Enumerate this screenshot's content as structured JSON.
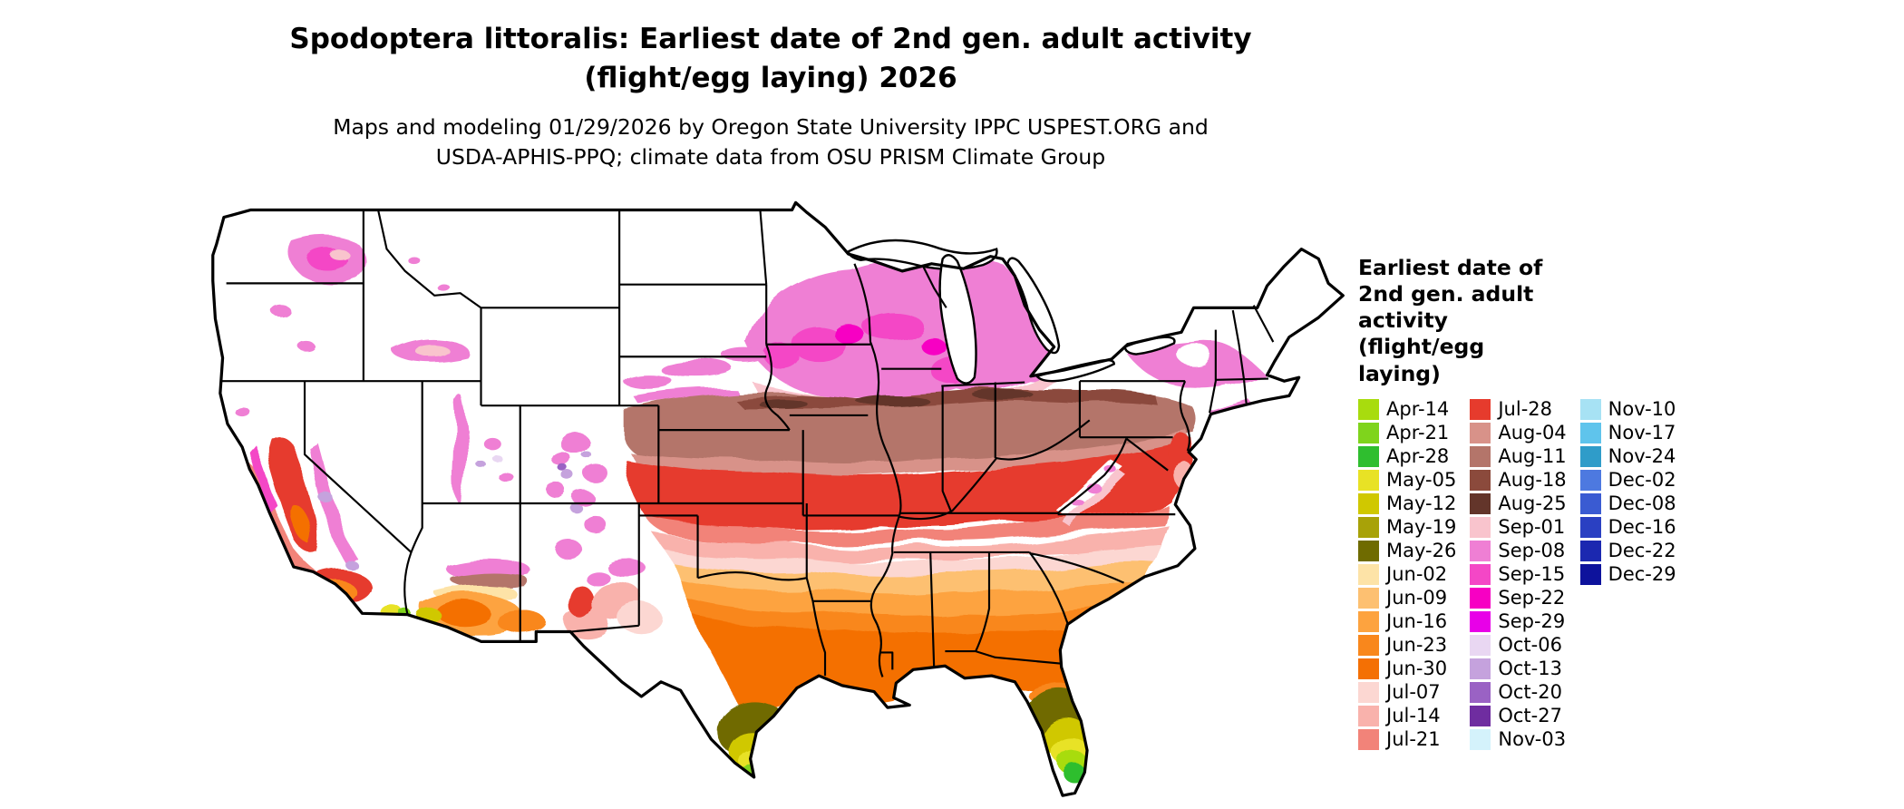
{
  "title": {
    "line1": "Spodoptera littoralis: Earliest date of 2nd gen. adult activity",
    "line2": "(flight/egg laying) 2026"
  },
  "subtitle": {
    "line1": "Maps and modeling 01/29/2026 by Oregon State University IPPC USPEST.ORG and",
    "line2": "USDA-APHIS-PPQ; climate data from OSU PRISM Climate Group"
  },
  "map": {
    "region": "Continental United States",
    "no_data_color": "#ffffff",
    "boundary_color": "#000000"
  },
  "legend": {
    "title": "Earliest date of 2nd gen. adult activity (flight/egg laying)",
    "columns": [
      [
        {
          "label": "Apr-14",
          "color": "#a8dc0e"
        },
        {
          "label": "Apr-21",
          "color": "#7fd41c"
        },
        {
          "label": "Apr-28",
          "color": "#2fbe2f"
        },
        {
          "label": "May-05",
          "color": "#e8e225"
        },
        {
          "label": "May-12",
          "color": "#d0c800"
        },
        {
          "label": "May-19",
          "color": "#a8a208"
        },
        {
          "label": "May-26",
          "color": "#6f6b00"
        },
        {
          "label": "Jun-02",
          "color": "#fde3a7"
        },
        {
          "label": "Jun-09",
          "color": "#fdc071"
        },
        {
          "label": "Jun-16",
          "color": "#fda33f"
        },
        {
          "label": "Jun-23",
          "color": "#f9871c"
        },
        {
          "label": "Jun-30",
          "color": "#f47004"
        },
        {
          "label": "Jul-07",
          "color": "#fcd7d2"
        },
        {
          "label": "Jul-14",
          "color": "#f9b2ac"
        },
        {
          "label": "Jul-21",
          "color": "#f28379"
        }
      ],
      [
        {
          "label": "Jul-28",
          "color": "#e63b2d"
        },
        {
          "label": "Aug-04",
          "color": "#d89289"
        },
        {
          "label": "Aug-11",
          "color": "#b4756a"
        },
        {
          "label": "Aug-18",
          "color": "#8b4a3c"
        },
        {
          "label": "Aug-25",
          "color": "#63352a"
        },
        {
          "label": "Sep-01",
          "color": "#f9c4cd"
        },
        {
          "label": "Sep-08",
          "color": "#ef7fd4"
        },
        {
          "label": "Sep-15",
          "color": "#f447c6"
        },
        {
          "label": "Sep-22",
          "color": "#f700c3"
        },
        {
          "label": "Sep-29",
          "color": "#e800e8"
        },
        {
          "label": "Oct-06",
          "color": "#e9d7f2"
        },
        {
          "label": "Oct-13",
          "color": "#c5a2dd"
        },
        {
          "label": "Oct-20",
          "color": "#9a62c4"
        },
        {
          "label": "Oct-27",
          "color": "#6f2da0"
        },
        {
          "label": "Nov-03",
          "color": "#d4f2fb"
        }
      ],
      [
        {
          "label": "Nov-10",
          "color": "#a7e2f4"
        },
        {
          "label": "Nov-17",
          "color": "#5fc4ec"
        },
        {
          "label": "Nov-24",
          "color": "#2f9cc9"
        },
        {
          "label": "Dec-02",
          "color": "#4d79e0"
        },
        {
          "label": "Dec-08",
          "color": "#3a5bd2"
        },
        {
          "label": "Dec-16",
          "color": "#2a40c2"
        },
        {
          "label": "Dec-22",
          "color": "#1b28b0"
        },
        {
          "label": "Dec-29",
          "color": "#0d129c"
        }
      ]
    ]
  }
}
